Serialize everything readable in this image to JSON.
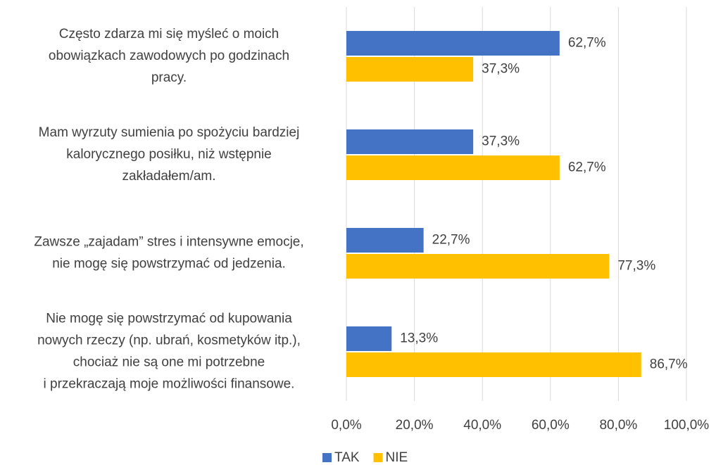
{
  "chart_data": {
    "type": "bar",
    "orientation": "horizontal",
    "categories": [
      "Często zdarza mi się myśleć o moich\nobowiązkach zawodowych po godzinach\npracy.",
      "Mam wyrzuty sumienia po spożyciu bardziej\nkalorycznego posiłku, niż wstępnie\nzakładałem/am.",
      "Zawsze „zajadam” stres i intensywne emocje,\nnie mogę się powstrzymać od jedzenia.",
      "Nie mogę się powstrzymać od kupowania\nnowych rzeczy (np. ubrań, kosmetyków itp.),\nchociaż nie są one mi potrzebne\ni przekraczają moje możliwości finansowe."
    ],
    "series": [
      {
        "name": "TAK",
        "color": "#4472c4",
        "values": [
          62.7,
          37.3,
          22.7,
          13.3
        ],
        "value_labels": [
          "62,7%",
          "37,3%",
          "22,7%",
          "13,3%"
        ]
      },
      {
        "name": "NIE",
        "color": "#ffc000",
        "values": [
          37.3,
          62.7,
          77.3,
          86.7
        ],
        "value_labels": [
          "37,3%",
          "62,7%",
          "77,3%",
          "86,7%"
        ]
      }
    ],
    "xlim": [
      0,
      100
    ],
    "xticks": [
      {
        "value": 0,
        "label": "0,0%"
      },
      {
        "value": 20,
        "label": "20,0%"
      },
      {
        "value": 40,
        "label": "40,0%"
      },
      {
        "value": 60,
        "label": "60,0%"
      },
      {
        "value": 80,
        "label": "80,0%"
      },
      {
        "value": 100,
        "label": "100,0%"
      }
    ],
    "grid": true,
    "legend": "bottom"
  }
}
